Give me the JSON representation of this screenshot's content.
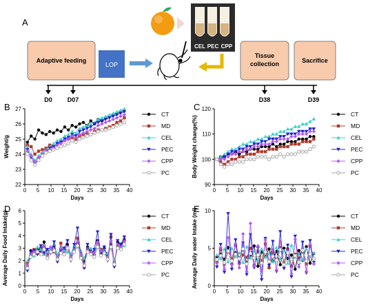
{
  "colors": {
    "box_fill": "#f8cbad",
    "box_stroke": "#7f7f7f",
    "lop_fill": "#4472c4",
    "arrow_blue": "#5b9bd5",
    "arrow_yellow": "#e6b800",
    "series": [
      "#000000",
      "#b03a2e",
      "#3fd1c8",
      "#1f1fd6",
      "#b45cf0",
      "#a6a6a6"
    ]
  },
  "scheme": {
    "panel_label": "A",
    "adaptive_feeding": "Adaptive feeding",
    "lop": "LOP",
    "tissue_line1": "Tissue",
    "tissue_line2": "collection",
    "sacrifice": "Sacrifice",
    "tubes": [
      "CEL",
      "PEC",
      "CPP"
    ],
    "days": [
      "D0",
      "D07",
      "D38",
      "D39"
    ]
  },
  "chart_data": [
    {
      "panel": "B",
      "type": "line",
      "xlabel": "Days",
      "ylabel": "Weight/g",
      "xlim": [
        0,
        40
      ],
      "ylim": [
        22,
        27
      ],
      "yticks": [
        22,
        23,
        24,
        25,
        26,
        27
      ],
      "series": [
        {
          "name": "CT",
          "values": [
            24.8,
            25.2,
            25.0,
            25.6,
            25.4,
            25.3,
            25.5,
            25.4,
            25.6,
            25.5,
            25.8,
            25.6,
            25.9,
            25.8,
            26.0,
            26.1,
            25.9,
            26.2,
            26.0,
            26.3,
            26.2,
            26.4,
            26.5,
            26.6,
            26.7,
            26.8,
            26.9
          ]
        },
        {
          "name": "MD",
          "values": [
            24.6,
            24.5,
            24.0,
            24.2,
            24.3,
            24.4,
            24.6,
            24.5,
            24.7,
            24.8,
            24.9,
            25.0,
            25.1,
            25.0,
            25.2,
            25.3,
            25.4,
            25.3,
            25.5,
            25.6,
            25.6,
            25.7,
            25.8,
            25.9,
            26.1,
            26.2,
            26.4
          ]
        },
        {
          "name": "CEL",
          "values": [
            24.5,
            24.0,
            23.6,
            23.9,
            24.1,
            24.3,
            24.5,
            24.7,
            24.9,
            25.0,
            25.2,
            25.3,
            25.5,
            25.4,
            25.7,
            25.8,
            25.9,
            26.0,
            26.1,
            26.3,
            26.4,
            26.5,
            26.6,
            26.7,
            26.8,
            26.9,
            27.0
          ]
        },
        {
          "name": "PEC",
          "values": [
            24.3,
            23.8,
            23.4,
            23.7,
            24.0,
            24.2,
            24.4,
            24.5,
            24.7,
            24.8,
            25.0,
            25.1,
            25.3,
            25.2,
            25.5,
            25.6,
            25.7,
            25.8,
            26.0,
            26.1,
            26.2,
            26.3,
            26.4,
            26.5,
            26.6,
            26.7,
            26.8
          ]
        },
        {
          "name": "CPP",
          "values": [
            24.2,
            23.9,
            23.5,
            23.8,
            24.0,
            24.2,
            24.3,
            24.4,
            24.6,
            24.7,
            24.9,
            25.0,
            25.2,
            25.1,
            25.3,
            25.4,
            25.5,
            25.6,
            25.7,
            25.9,
            26.0,
            26.1,
            26.2,
            26.3,
            26.4,
            26.5,
            26.6
          ]
        },
        {
          "name": "PC",
          "values": [
            24.0,
            23.6,
            23.3,
            23.6,
            23.9,
            24.1,
            24.2,
            24.3,
            24.4,
            24.5,
            24.6,
            24.7,
            24.9,
            24.8,
            25.0,
            25.1,
            25.2,
            25.3,
            25.4,
            25.5,
            25.6,
            25.6,
            25.7,
            25.8,
            25.9,
            26.0,
            26.1
          ]
        }
      ]
    },
    {
      "panel": "C",
      "type": "line",
      "xlabel": "Days",
      "ylabel": "Body Weight change(%)",
      "xlim": [
        0,
        40
      ],
      "ylim": [
        90,
        120
      ],
      "yticks": [
        90,
        100,
        110,
        120
      ],
      "series": [
        {
          "name": "CT",
          "values": [
            100,
            101,
            101,
            102,
            102,
            103,
            102,
            103,
            103,
            104,
            104,
            104,
            105,
            105,
            105,
            106,
            105,
            106,
            106,
            107,
            107,
            107,
            108,
            108,
            108,
            109,
            109
          ]
        },
        {
          "name": "MD",
          "values": [
            100,
            99,
            98,
            99,
            100,
            100,
            101,
            101,
            102,
            102,
            102,
            103,
            103,
            103,
            104,
            104,
            104,
            105,
            105,
            105,
            106,
            106,
            106,
            107,
            107,
            107,
            108
          ]
        },
        {
          "name": "CEL",
          "values": [
            100,
            101,
            102,
            103,
            104,
            104,
            105,
            106,
            106,
            107,
            107,
            108,
            108,
            109,
            109,
            110,
            110,
            111,
            111,
            112,
            112,
            113,
            113,
            114,
            114,
            115,
            116
          ]
        },
        {
          "name": "PEC",
          "values": [
            100,
            100,
            101,
            102,
            103,
            103,
            104,
            104,
            105,
            105,
            106,
            106,
            107,
            107,
            108,
            108,
            108,
            109,
            109,
            110,
            110,
            110,
            111,
            111,
            111,
            112,
            112
          ]
        },
        {
          "name": "CPP",
          "values": [
            100,
            100,
            100,
            101,
            102,
            102,
            103,
            103,
            104,
            104,
            105,
            105,
            106,
            106,
            106,
            107,
            107,
            108,
            108,
            108,
            109,
            109,
            110,
            110,
            110,
            111,
            111
          ]
        },
        {
          "name": "PC",
          "values": [
            100,
            98,
            97,
            98,
            98,
            99,
            99,
            99,
            100,
            100,
            100,
            101,
            101,
            101,
            100,
            101,
            101,
            102,
            101,
            102,
            102,
            102,
            103,
            103,
            103,
            104,
            105
          ]
        }
      ]
    },
    {
      "panel": "D",
      "type": "line",
      "xlabel": "Days",
      "ylabel": "Average Daily Food Intake(g)",
      "xlim": [
        0,
        40
      ],
      "ylim": [
        0,
        6
      ],
      "yticks": [
        0,
        1,
        2,
        3,
        4,
        5,
        6
      ],
      "series": [
        {
          "name": "CT",
          "values": [
            1.5,
            2.8,
            2.6,
            2.9,
            2.7,
            3.5,
            2.4,
            2.8,
            3.2,
            2.0,
            2.9,
            2.7,
            3.3,
            2.2,
            3.0,
            3.4,
            2.6,
            1.9,
            3.1,
            2.8,
            2.5,
            3.6,
            2.7,
            3.0,
            2.4,
            3.3,
            1.6,
            3.5,
            3.2,
            3.7
          ]
        },
        {
          "name": "MD",
          "values": [
            1.8,
            2.5,
            2.9,
            2.6,
            3.0,
            2.8,
            2.5,
            3.0,
            2.7,
            2.2,
            3.4,
            2.5,
            3.0,
            2.4,
            2.8,
            3.8,
            2.3,
            1.5,
            3.0,
            2.6,
            2.7,
            3.4,
            2.9,
            2.6,
            2.2,
            3.9,
            1.9,
            3.2,
            3.0,
            3.6
          ]
        },
        {
          "name": "CEL",
          "values": [
            2.0,
            2.6,
            2.4,
            3.1,
            2.9,
            2.5,
            2.7,
            2.9,
            3.3,
            2.5,
            3.1,
            2.8,
            2.7,
            2.6,
            3.2,
            3.1,
            2.8,
            2.2,
            2.9,
            3.0,
            2.4,
            3.3,
            2.6,
            2.9,
            2.6,
            3.0,
            2.1,
            3.0,
            3.4,
            3.2
          ]
        },
        {
          "name": "PEC",
          "values": [
            1.2,
            2.7,
            2.8,
            2.5,
            3.2,
            2.6,
            2.9,
            2.6,
            3.5,
            1.9,
            2.8,
            3.0,
            3.6,
            2.0,
            3.3,
            4.6,
            2.4,
            1.4,
            3.3,
            2.5,
            2.9,
            4.3,
            2.5,
            3.1,
            2.0,
            4.1,
            1.5,
            3.6,
            3.3,
            3.9
          ]
        },
        {
          "name": "CPP",
          "values": [
            1.6,
            2.4,
            2.7,
            2.8,
            2.6,
            3.1,
            2.3,
            3.1,
            2.9,
            2.3,
            3.0,
            2.6,
            3.1,
            2.3,
            2.9,
            3.5,
            2.5,
            1.7,
            2.8,
            2.7,
            2.6,
            3.5,
            2.8,
            2.7,
            2.3,
            3.6,
            1.8,
            3.3,
            3.1,
            3.5
          ]
        },
        {
          "name": "PC",
          "values": [
            1.4,
            2.3,
            2.5,
            2.7,
            2.5,
            2.9,
            2.2,
            2.7,
            2.8,
            2.1,
            2.6,
            2.5,
            3.0,
            2.1,
            2.7,
            3.2,
            2.2,
            1.6,
            2.7,
            2.5,
            2.3,
            3.1,
            2.4,
            2.6,
            2.1,
            3.1,
            1.7,
            3.0,
            2.9,
            3.3
          ]
        }
      ]
    },
    {
      "panel": "E",
      "type": "line",
      "xlabel": "Days",
      "ylabel": "Average Daily water Intake (ml)",
      "xlim": [
        0,
        40
      ],
      "ylim": [
        0,
        10
      ],
      "yticks": [
        0,
        5,
        10
      ],
      "series": [
        {
          "name": "CT",
          "values": [
            3.8,
            4.2,
            3.5,
            5.1,
            2.9,
            4.4,
            3.7,
            4.8,
            3.1,
            4.0,
            5.3,
            2.6,
            4.5,
            3.9,
            4.9,
            3.3,
            4.6,
            2.8,
            5.0,
            3.6,
            4.1,
            2.2,
            4.7,
            3.4,
            5.2,
            3.0,
            4.3
          ]
        },
        {
          "name": "MD",
          "values": [
            3.2,
            4.8,
            2.9,
            4.5,
            3.6,
            5.4,
            3.0,
            4.1,
            3.8,
            5.0,
            2.7,
            4.6,
            3.3,
            5.6,
            2.4,
            4.4,
            3.5,
            5.1,
            3.1,
            4.9,
            2.6,
            4.2,
            3.7,
            4.5,
            2.9,
            5.3,
            3.6
          ]
        },
        {
          "name": "CEL",
          "values": [
            4.1,
            3.6,
            4.9,
            3.2,
            5.0,
            3.9,
            4.4,
            3.1,
            5.2,
            3.7,
            4.6,
            3.4,
            4.9,
            3.8,
            4.3,
            3.2,
            5.1,
            3.6,
            4.7,
            3.0,
            5.4,
            3.8,
            4.2,
            3.5,
            4.9,
            3.9,
            4.4
          ]
        },
        {
          "name": "PEC",
          "values": [
            2.5,
            5.5,
            1.8,
            9.6,
            2.2,
            6.1,
            3.0,
            5.7,
            1.5,
            6.8,
            2.4,
            5.0,
            0.8,
            6.3,
            2.7,
            5.9,
            1.9,
            7.2,
            2.3,
            5.4,
            1.2,
            6.6,
            2.8,
            5.8,
            1.7,
            6.0,
            3.1
          ]
        },
        {
          "name": "CPP",
          "values": [
            3.0,
            5.1,
            2.2,
            6.4,
            2.8,
            5.6,
            2.4,
            6.9,
            1.9,
            8.3,
            2.6,
            5.3,
            2.0,
            6.1,
            3.2,
            4.8,
            2.1,
            5.9,
            2.7,
            4.6,
            1.6,
            6.2,
            2.5,
            5.0,
            1.9,
            5.5,
            2.9
          ]
        },
        {
          "name": "PC",
          "values": [
            3.5,
            4.0,
            3.1,
            4.6,
            3.3,
            4.2,
            3.6,
            4.9,
            2.9,
            4.3,
            3.7,
            4.1,
            3.0,
            4.5,
            3.2,
            3.9,
            3.4,
            4.8,
            2.8,
            4.4,
            3.5,
            4.0,
            3.1,
            4.7,
            3.3,
            4.2,
            3.6
          ]
        }
      ]
    }
  ]
}
